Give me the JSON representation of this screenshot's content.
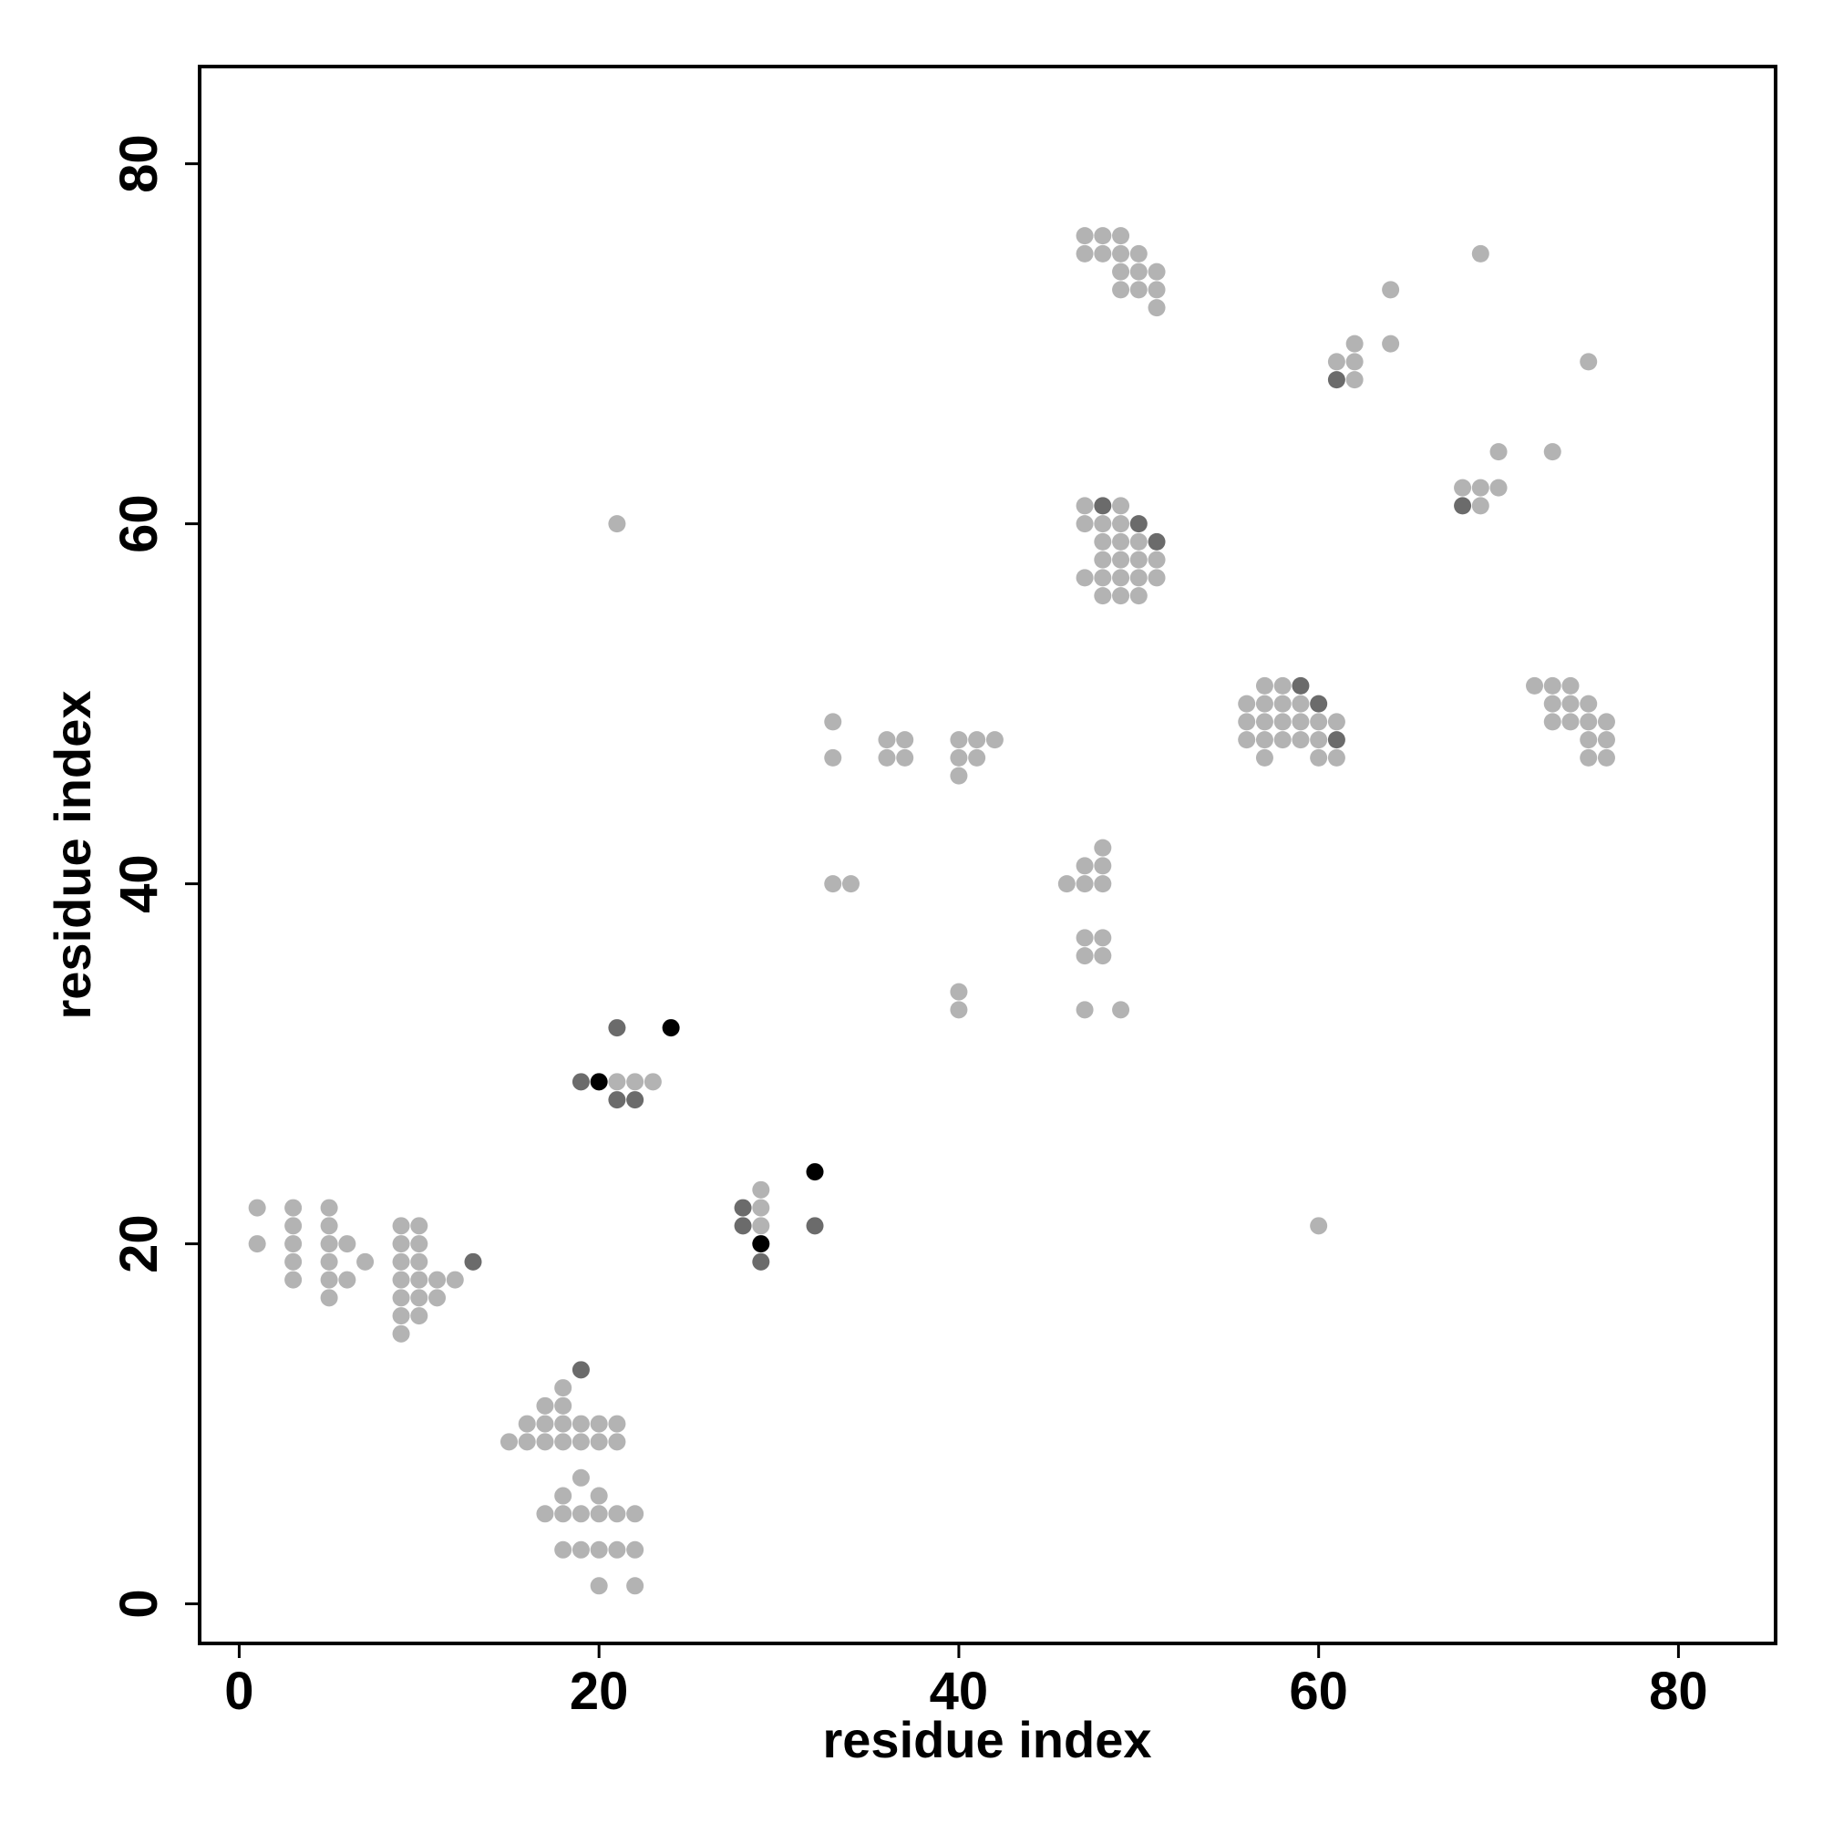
{
  "chart_data": {
    "type": "scatter",
    "title": "",
    "xlabel": "residue index",
    "ylabel": "residue index",
    "xlim": [
      -2.2,
      85.4
    ],
    "ylim": [
      -2.2,
      85.4
    ],
    "xticks": [
      0,
      20,
      40,
      60,
      80
    ],
    "yticks": [
      0,
      20,
      40,
      60,
      80
    ],
    "grid": false,
    "legend": "none",
    "colors": {
      "light": "#b3b3b3",
      "medium": "#6b6b6b",
      "dark": "#000000"
    },
    "points": [
      [
        1,
        22,
        0
      ],
      [
        1,
        20,
        0
      ],
      [
        3,
        22,
        0
      ],
      [
        3,
        21,
        0
      ],
      [
        3,
        20,
        0
      ],
      [
        3,
        19,
        0
      ],
      [
        3,
        18,
        0
      ],
      [
        5,
        22,
        0
      ],
      [
        5,
        21,
        0
      ],
      [
        5,
        20,
        0
      ],
      [
        5,
        19,
        0
      ],
      [
        5,
        18,
        0
      ],
      [
        5,
        17,
        0
      ],
      [
        6,
        20,
        0
      ],
      [
        6,
        18,
        0
      ],
      [
        7,
        19,
        0
      ],
      [
        9,
        21,
        0
      ],
      [
        9,
        20,
        0
      ],
      [
        9,
        19,
        0
      ],
      [
        9,
        18,
        0
      ],
      [
        9,
        17,
        0
      ],
      [
        9,
        16,
        0
      ],
      [
        9,
        15,
        0
      ],
      [
        10,
        21,
        0
      ],
      [
        10,
        20,
        0
      ],
      [
        10,
        19,
        0
      ],
      [
        10,
        18,
        0
      ],
      [
        10,
        17,
        0
      ],
      [
        10,
        16,
        0
      ],
      [
        11,
        18,
        0
      ],
      [
        11,
        17,
        0
      ],
      [
        12,
        18,
        0
      ],
      [
        13,
        19,
        1
      ],
      [
        15,
        9,
        0
      ],
      [
        16,
        10,
        0
      ],
      [
        16,
        9,
        0
      ],
      [
        17,
        11,
        0
      ],
      [
        17,
        10,
        0
      ],
      [
        17,
        9,
        0
      ],
      [
        17,
        5,
        0
      ],
      [
        18,
        12,
        0
      ],
      [
        18,
        11,
        0
      ],
      [
        18,
        10,
        0
      ],
      [
        18,
        9,
        0
      ],
      [
        18,
        6,
        0
      ],
      [
        18,
        5,
        0
      ],
      [
        18,
        3,
        0
      ],
      [
        19,
        13,
        1
      ],
      [
        19,
        10,
        0
      ],
      [
        19,
        9,
        0
      ],
      [
        19,
        7,
        0
      ],
      [
        19,
        5,
        0
      ],
      [
        19,
        3,
        0
      ],
      [
        20,
        10,
        0
      ],
      [
        20,
        9,
        0
      ],
      [
        20,
        6,
        0
      ],
      [
        20,
        5,
        0
      ],
      [
        20,
        3,
        0
      ],
      [
        20,
        1,
        0
      ],
      [
        21,
        10,
        0
      ],
      [
        21,
        9,
        0
      ],
      [
        21,
        5,
        0
      ],
      [
        21,
        3,
        0
      ],
      [
        22,
        5,
        0
      ],
      [
        22,
        3,
        0
      ],
      [
        22,
        1,
        0
      ],
      [
        19,
        29,
        1
      ],
      [
        20,
        29,
        2
      ],
      [
        21,
        29,
        0
      ],
      [
        21,
        28,
        1
      ],
      [
        21,
        32,
        1
      ],
      [
        22,
        29,
        0
      ],
      [
        22,
        28,
        1
      ],
      [
        23,
        29,
        0
      ],
      [
        24,
        32,
        2
      ],
      [
        21,
        60,
        0
      ],
      [
        28,
        22,
        1
      ],
      [
        28,
        21,
        1
      ],
      [
        29,
        23,
        0
      ],
      [
        29,
        22,
        0
      ],
      [
        29,
        21,
        0
      ],
      [
        29,
        20,
        2
      ],
      [
        29,
        19,
        1
      ],
      [
        32,
        24,
        2
      ],
      [
        32,
        21,
        1
      ],
      [
        33,
        49,
        0
      ],
      [
        33,
        47,
        0
      ],
      [
        33,
        40,
        0
      ],
      [
        34,
        40,
        0
      ],
      [
        36,
        48,
        0
      ],
      [
        36,
        47,
        0
      ],
      [
        37,
        48,
        0
      ],
      [
        37,
        47,
        0
      ],
      [
        40,
        48,
        0
      ],
      [
        40,
        47,
        0
      ],
      [
        40,
        46,
        0
      ],
      [
        40,
        34,
        0
      ],
      [
        40,
        33,
        0
      ],
      [
        41,
        48,
        0
      ],
      [
        41,
        47,
        0
      ],
      [
        42,
        48,
        0
      ],
      [
        46,
        40,
        0
      ],
      [
        47,
        41,
        0
      ],
      [
        47,
        40,
        0
      ],
      [
        47,
        37,
        0
      ],
      [
        47,
        36,
        0
      ],
      [
        47,
        33,
        0
      ],
      [
        48,
        42,
        0
      ],
      [
        48,
        41,
        0
      ],
      [
        48,
        40,
        0
      ],
      [
        48,
        37,
        0
      ],
      [
        48,
        36,
        0
      ],
      [
        49,
        33,
        0
      ],
      [
        47,
        76,
        0
      ],
      [
        47,
        75,
        0
      ],
      [
        48,
        76,
        0
      ],
      [
        48,
        75,
        0
      ],
      [
        49,
        76,
        0
      ],
      [
        49,
        75,
        0
      ],
      [
        49,
        74,
        0
      ],
      [
        49,
        73,
        0
      ],
      [
        50,
        75,
        0
      ],
      [
        50,
        74,
        0
      ],
      [
        50,
        73,
        0
      ],
      [
        51,
        74,
        0
      ],
      [
        51,
        73,
        0
      ],
      [
        51,
        72,
        0
      ],
      [
        47,
        61,
        0
      ],
      [
        47,
        60,
        0
      ],
      [
        47,
        57,
        0
      ],
      [
        48,
        61,
        1
      ],
      [
        48,
        60,
        0
      ],
      [
        48,
        59,
        0
      ],
      [
        48,
        58,
        0
      ],
      [
        48,
        57,
        0
      ],
      [
        48,
        56,
        0
      ],
      [
        49,
        61,
        0
      ],
      [
        49,
        60,
        0
      ],
      [
        49,
        59,
        0
      ],
      [
        49,
        58,
        0
      ],
      [
        49,
        57,
        0
      ],
      [
        49,
        56,
        0
      ],
      [
        50,
        60,
        1
      ],
      [
        50,
        59,
        0
      ],
      [
        50,
        58,
        0
      ],
      [
        50,
        57,
        0
      ],
      [
        50,
        56,
        0
      ],
      [
        51,
        59,
        1
      ],
      [
        51,
        58,
        0
      ],
      [
        51,
        57,
        0
      ],
      [
        56,
        50,
        0
      ],
      [
        56,
        49,
        0
      ],
      [
        56,
        48,
        0
      ],
      [
        57,
        51,
        0
      ],
      [
        57,
        50,
        0
      ],
      [
        57,
        49,
        0
      ],
      [
        57,
        48,
        0
      ],
      [
        57,
        47,
        0
      ],
      [
        58,
        51,
        0
      ],
      [
        58,
        50,
        0
      ],
      [
        58,
        49,
        0
      ],
      [
        58,
        48,
        0
      ],
      [
        59,
        51,
        1
      ],
      [
        59,
        50,
        0
      ],
      [
        59,
        49,
        0
      ],
      [
        59,
        48,
        0
      ],
      [
        60,
        50,
        1
      ],
      [
        60,
        49,
        0
      ],
      [
        60,
        48,
        0
      ],
      [
        60,
        47,
        0
      ],
      [
        60,
        21,
        0
      ],
      [
        61,
        49,
        0
      ],
      [
        61,
        48,
        1
      ],
      [
        61,
        47,
        0
      ],
      [
        61,
        69,
        0
      ],
      [
        61,
        68,
        1
      ],
      [
        62,
        70,
        0
      ],
      [
        62,
        69,
        0
      ],
      [
        62,
        68,
        0
      ],
      [
        64,
        73,
        0
      ],
      [
        64,
        70,
        0
      ],
      [
        68,
        62,
        0
      ],
      [
        68,
        61,
        1
      ],
      [
        69,
        75,
        0
      ],
      [
        69,
        62,
        0
      ],
      [
        69,
        61,
        0
      ],
      [
        70,
        64,
        0
      ],
      [
        70,
        62,
        0
      ],
      [
        72,
        51,
        0
      ],
      [
        73,
        64,
        0
      ],
      [
        73,
        51,
        0
      ],
      [
        73,
        50,
        0
      ],
      [
        73,
        49,
        0
      ],
      [
        74,
        51,
        0
      ],
      [
        74,
        50,
        0
      ],
      [
        74,
        49,
        0
      ],
      [
        75,
        69,
        0
      ],
      [
        75,
        50,
        0
      ],
      [
        75,
        49,
        0
      ],
      [
        75,
        48,
        0
      ],
      [
        75,
        47,
        0
      ],
      [
        76,
        49,
        0
      ],
      [
        76,
        48,
        0
      ],
      [
        76,
        47,
        0
      ]
    ]
  }
}
